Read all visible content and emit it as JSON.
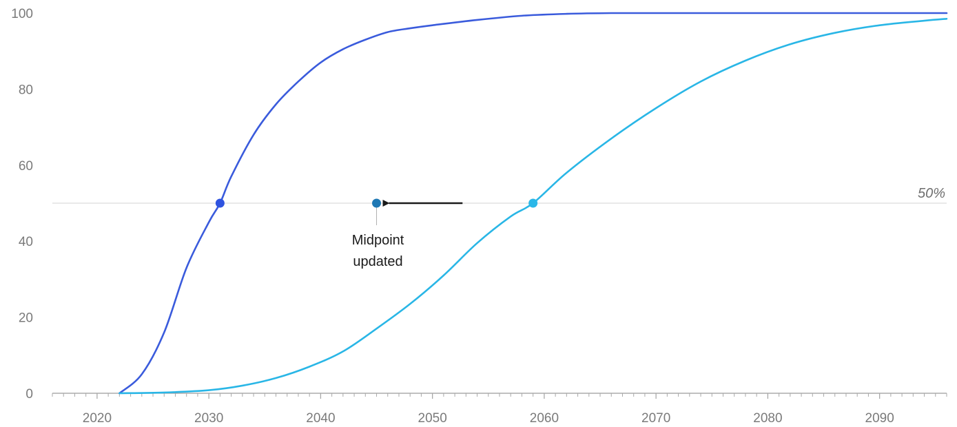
{
  "chart_data": {
    "type": "line",
    "title": "",
    "xlabel": "",
    "ylabel": "",
    "xlim": [
      2016,
      2096
    ],
    "ylim": [
      0,
      100
    ],
    "x_ticks": [
      2020,
      2030,
      2040,
      2050,
      2060,
      2070,
      2080,
      2090
    ],
    "y_ticks": [
      0,
      20,
      40,
      60,
      80,
      100
    ],
    "grid": false,
    "series": [
      {
        "color": "#3a5bdc",
        "x": [
          2022,
          2024,
          2026,
          2028,
          2030,
          2031,
          2032,
          2034,
          2036,
          2038,
          2040,
          2042,
          2044,
          2046,
          2048,
          2050,
          2054,
          2058,
          2062,
          2066,
          2070,
          2080,
          2090,
          2096
        ],
        "values": [
          0,
          5,
          16,
          33,
          45,
          50,
          57,
          68,
          76,
          82,
          87,
          90.5,
          93,
          95,
          96,
          96.8,
          98.2,
          99.3,
          99.8,
          100,
          100,
          100,
          100,
          100
        ]
      },
      {
        "color": "#29b6e6",
        "x": [
          2022,
          2026,
          2030,
          2033,
          2036,
          2039,
          2042,
          2045,
          2048,
          2051,
          2054,
          2057,
          2059,
          2062,
          2066,
          2070,
          2074,
          2078,
          2082,
          2086,
          2090,
          2094,
          2096
        ],
        "values": [
          0,
          0.2,
          0.8,
          2,
          4,
          7,
          11,
          17,
          23.5,
          31,
          39.5,
          46.5,
          50,
          58,
          67,
          75,
          82,
          87.5,
          91.8,
          94.8,
          96.8,
          98,
          98.5
        ]
      }
    ],
    "reference_line": {
      "y": 50,
      "label": "50%"
    },
    "highlight_points": [
      {
        "x": 2031,
        "y": 50,
        "color": "#2f53e0"
      },
      {
        "x": 2045,
        "y": 50,
        "color": "#1f78b4"
      },
      {
        "x": 2059,
        "y": 50,
        "color": "#2bb7e8"
      }
    ],
    "annotation": {
      "lines": [
        "Midpoint",
        "updated"
      ],
      "x": 2045,
      "arrow_from_x": 2053,
      "arrow_to_x": 2045,
      "y": 50
    }
  }
}
